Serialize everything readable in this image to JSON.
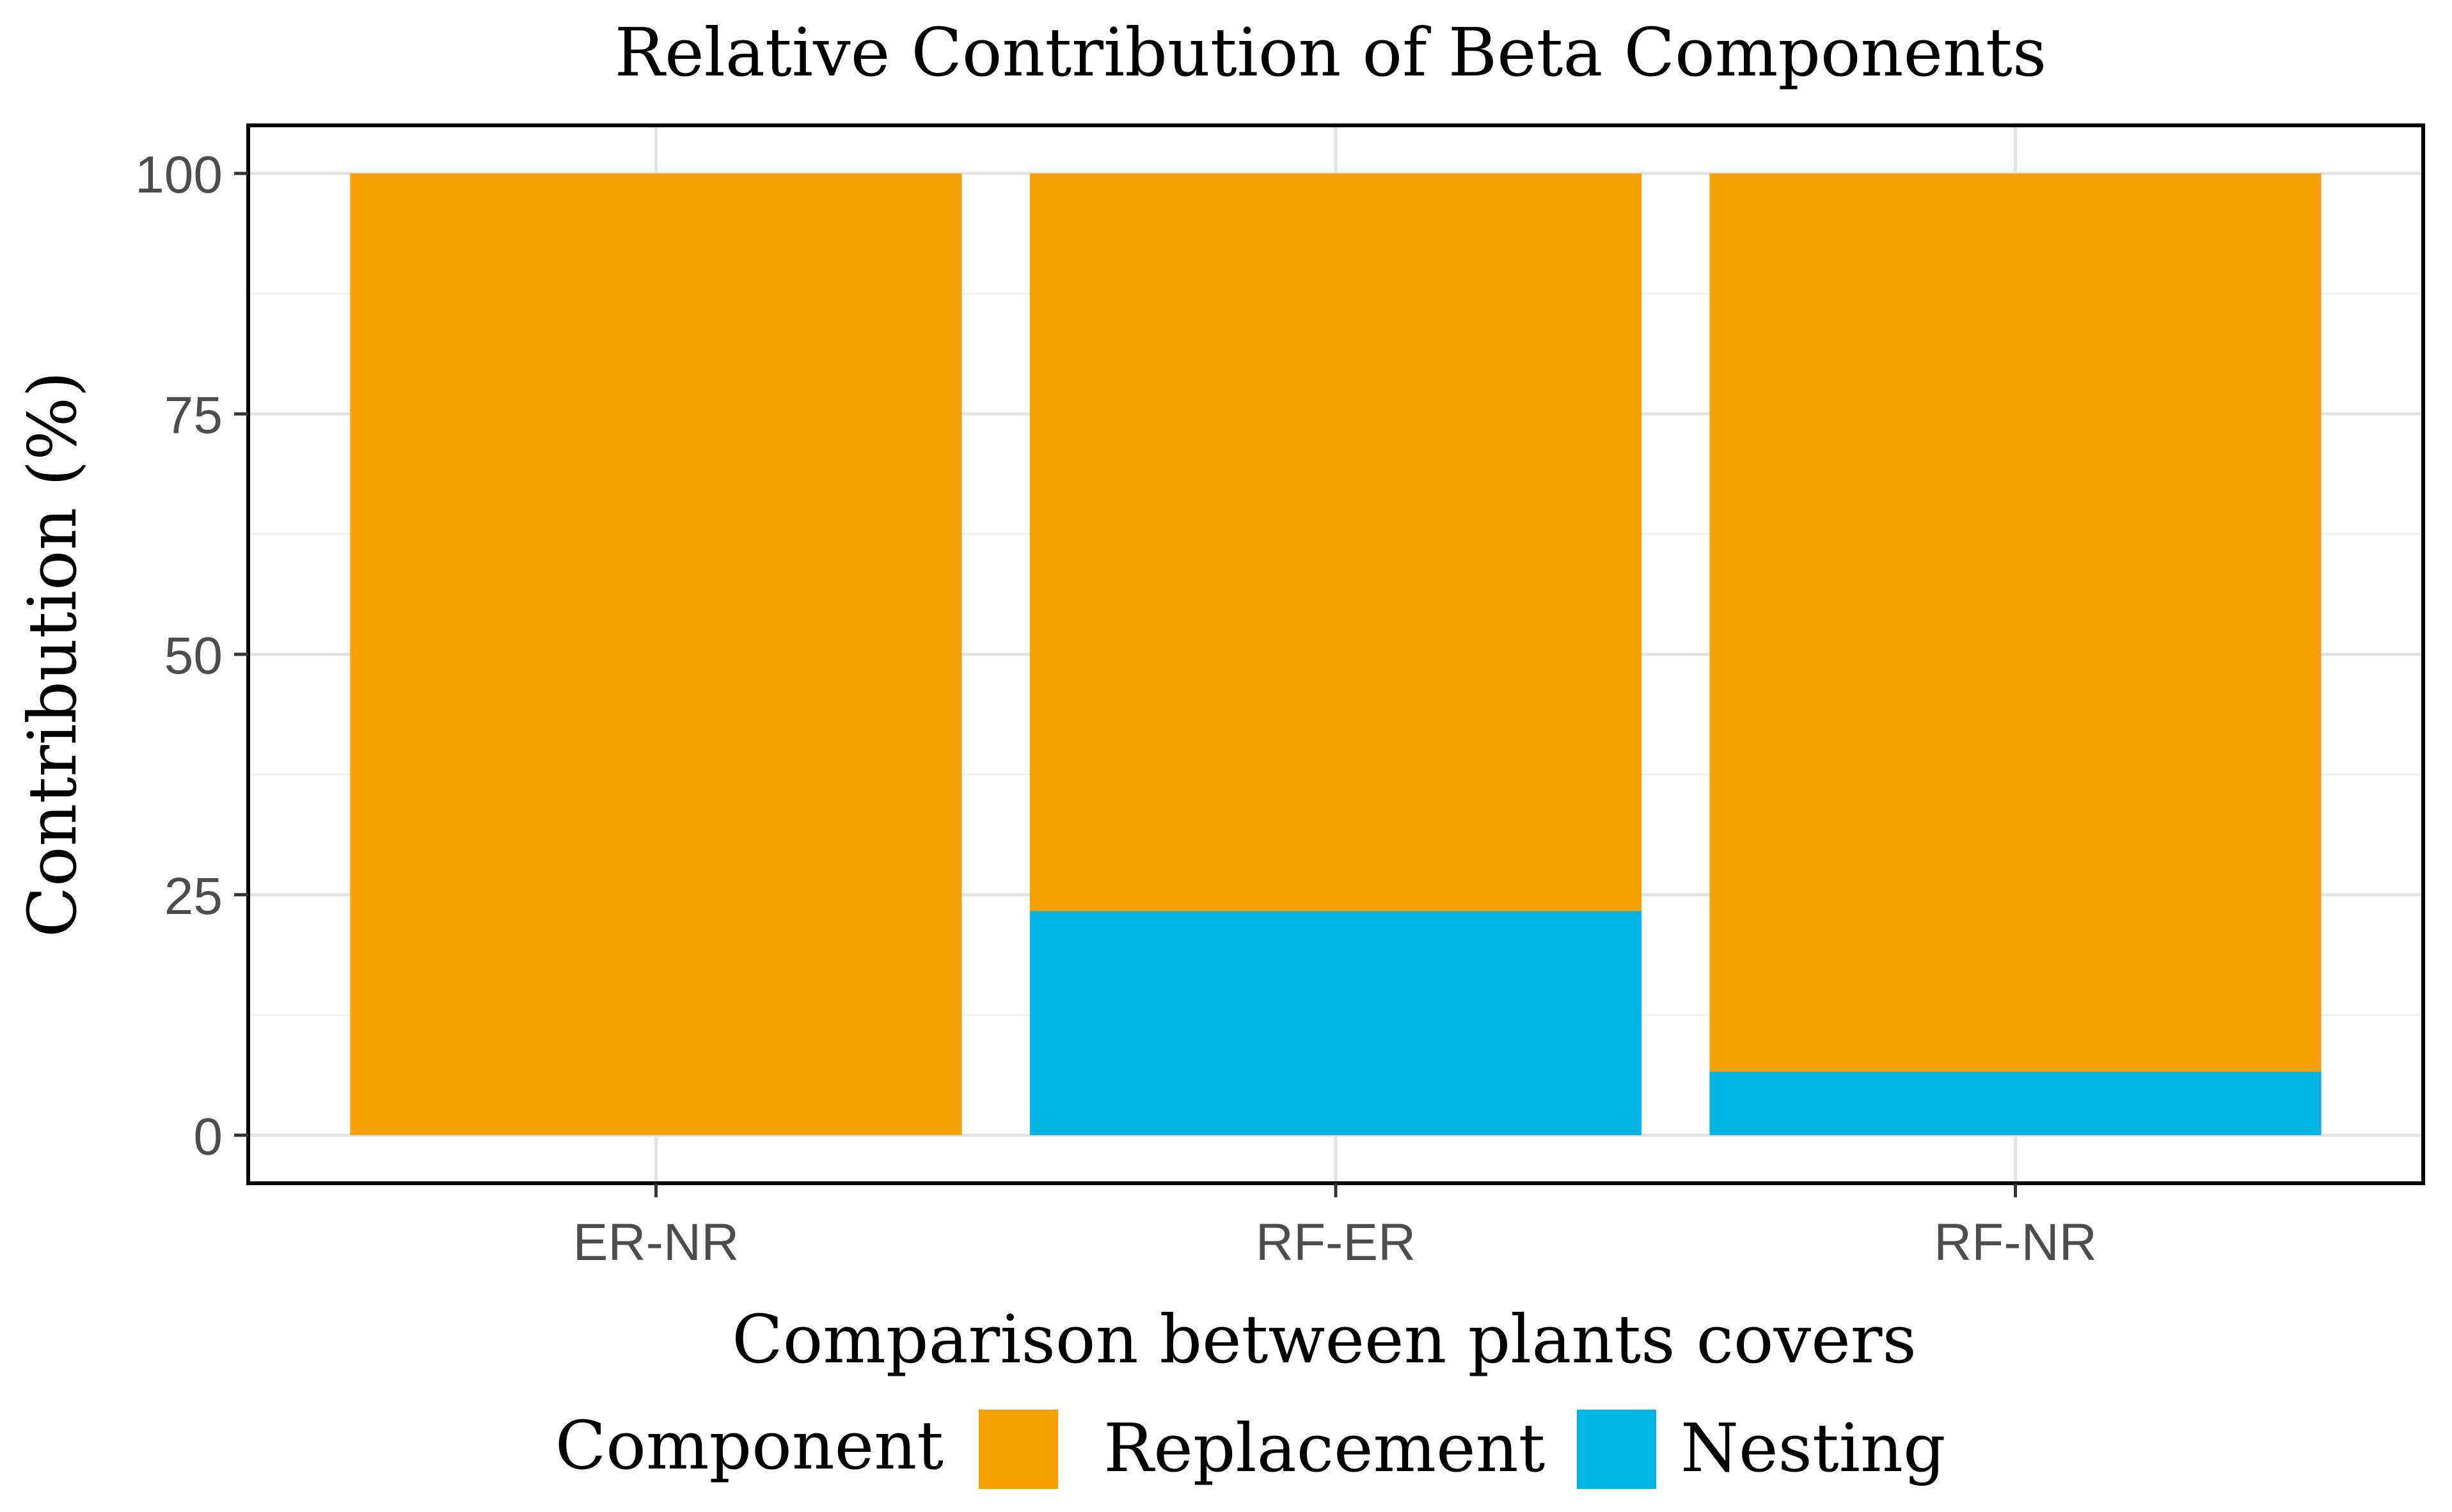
{
  "chart_data": {
    "type": "bar",
    "stacked": true,
    "title": "Relative Contribution of Beta Components",
    "xlabel": "Comparison between plants covers",
    "ylabel": "Contribution (%)",
    "categories": [
      "ER-NR",
      "RF-ER",
      "RF-NR"
    ],
    "series": [
      {
        "name": "Nesting",
        "values": [
          0,
          23.3,
          6.6
        ],
        "color": "#00B4E6"
      },
      {
        "name": "Replacement",
        "values": [
          100,
          76.7,
          93.4
        ],
        "color": "#F7A000"
      }
    ],
    "ylim": [
      -5,
      105
    ],
    "yticks": [
      0,
      25,
      50,
      75,
      100
    ],
    "grid": true,
    "legend": {
      "title": "Component",
      "position": "bottom",
      "entries": [
        {
          "label": "Replacement",
          "color": "#F7A000"
        },
        {
          "label": "Nesting",
          "color": "#00B4E6"
        }
      ]
    }
  }
}
